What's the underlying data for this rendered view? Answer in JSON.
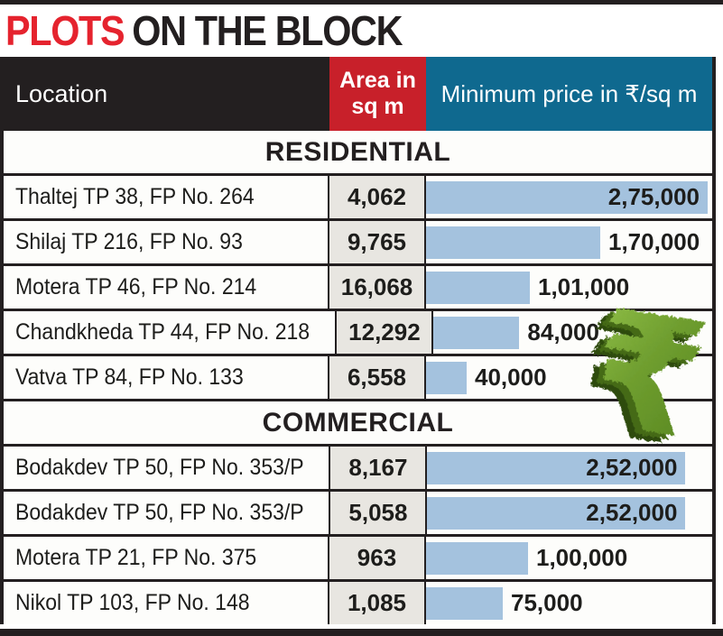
{
  "title": {
    "highlight": "PLOTS",
    "rest": "ON THE BLOCK"
  },
  "columns": {
    "location": "Location",
    "area": "Area in sq m",
    "price": "Minimum price in ₹/sq m"
  },
  "sections": [
    {
      "label": "RESIDENTIAL",
      "rows": [
        {
          "location": "Thaltej TP 38, FP No. 264",
          "area": "4,062",
          "price": "2,75,000",
          "price_value": 275000
        },
        {
          "location": "Shilaj TP 216, FP No. 93",
          "area": "9,765",
          "price": "1,70,000",
          "price_value": 170000
        },
        {
          "location": "Motera TP 46, FP No. 214",
          "area": "16,068",
          "price": "1,01,000",
          "price_value": 101000
        },
        {
          "location": "Chandkheda TP 44, FP No. 218",
          "area": "12,292",
          "price": "84,000",
          "price_value": 84000
        },
        {
          "location": "Vatva TP 84, FP No. 133",
          "area": "6,558",
          "price": "40,000",
          "price_value": 40000
        }
      ]
    },
    {
      "label": "COMMERCIAL",
      "rows": [
        {
          "location": "Bodakdev TP 50, FP No. 353/P",
          "area": "8,167",
          "price": "2,52,000",
          "price_value": 252000
        },
        {
          "location": "Bodakdev TP 50, FP No. 353/P",
          "area": "5,058",
          "price": "2,52,000",
          "price_value": 252000
        },
        {
          "location": "Motera TP 21, FP No. 375",
          "area": "963",
          "price": "1,00,000",
          "price_value": 100000
        },
        {
          "location": "Nikol TP 103, FP No. 148",
          "area": "1,085",
          "price": "75,000",
          "price_value": 75000
        }
      ]
    }
  ],
  "decoration": {
    "rupee_symbol": "₹"
  },
  "colors": {
    "title_red": "#e5232e",
    "near_black": "#231f20",
    "header_red": "#c8202a",
    "header_blue": "#0f698f",
    "bar_blue": "#a4c2de",
    "area_cell_bg": "#e8e6e1",
    "grass_green": "#6f9e2f"
  },
  "chart_data": {
    "type": "bar",
    "title": "PLOTS ON THE BLOCK",
    "xlabel": "Minimum price in ₹/sq m",
    "ylabel": "Location",
    "xlim": [
      0,
      275000
    ],
    "grid": false,
    "legend_position": "none",
    "groups": [
      {
        "name": "RESIDENTIAL",
        "categories": [
          "Thaltej TP 38, FP No. 264",
          "Shilaj TP 216, FP No. 93",
          "Motera TP 46, FP No. 214",
          "Chandkheda TP 44, FP No. 218",
          "Vatva TP 84, FP No. 133"
        ],
        "area_sq_m": [
          4062,
          9765,
          16068,
          12292,
          6558
        ],
        "min_price_per_sq_m": [
          275000,
          170000,
          101000,
          84000,
          40000
        ]
      },
      {
        "name": "COMMERCIAL",
        "categories": [
          "Bodakdev TP 50, FP No. 353/P",
          "Bodakdev TP 50, FP No. 353/P",
          "Motera TP 21, FP No. 375",
          "Nikol TP 103, FP No. 148"
        ],
        "area_sq_m": [
          8167,
          5058,
          963,
          1085
        ],
        "min_price_per_sq_m": [
          252000,
          252000,
          100000,
          75000
        ]
      }
    ]
  }
}
